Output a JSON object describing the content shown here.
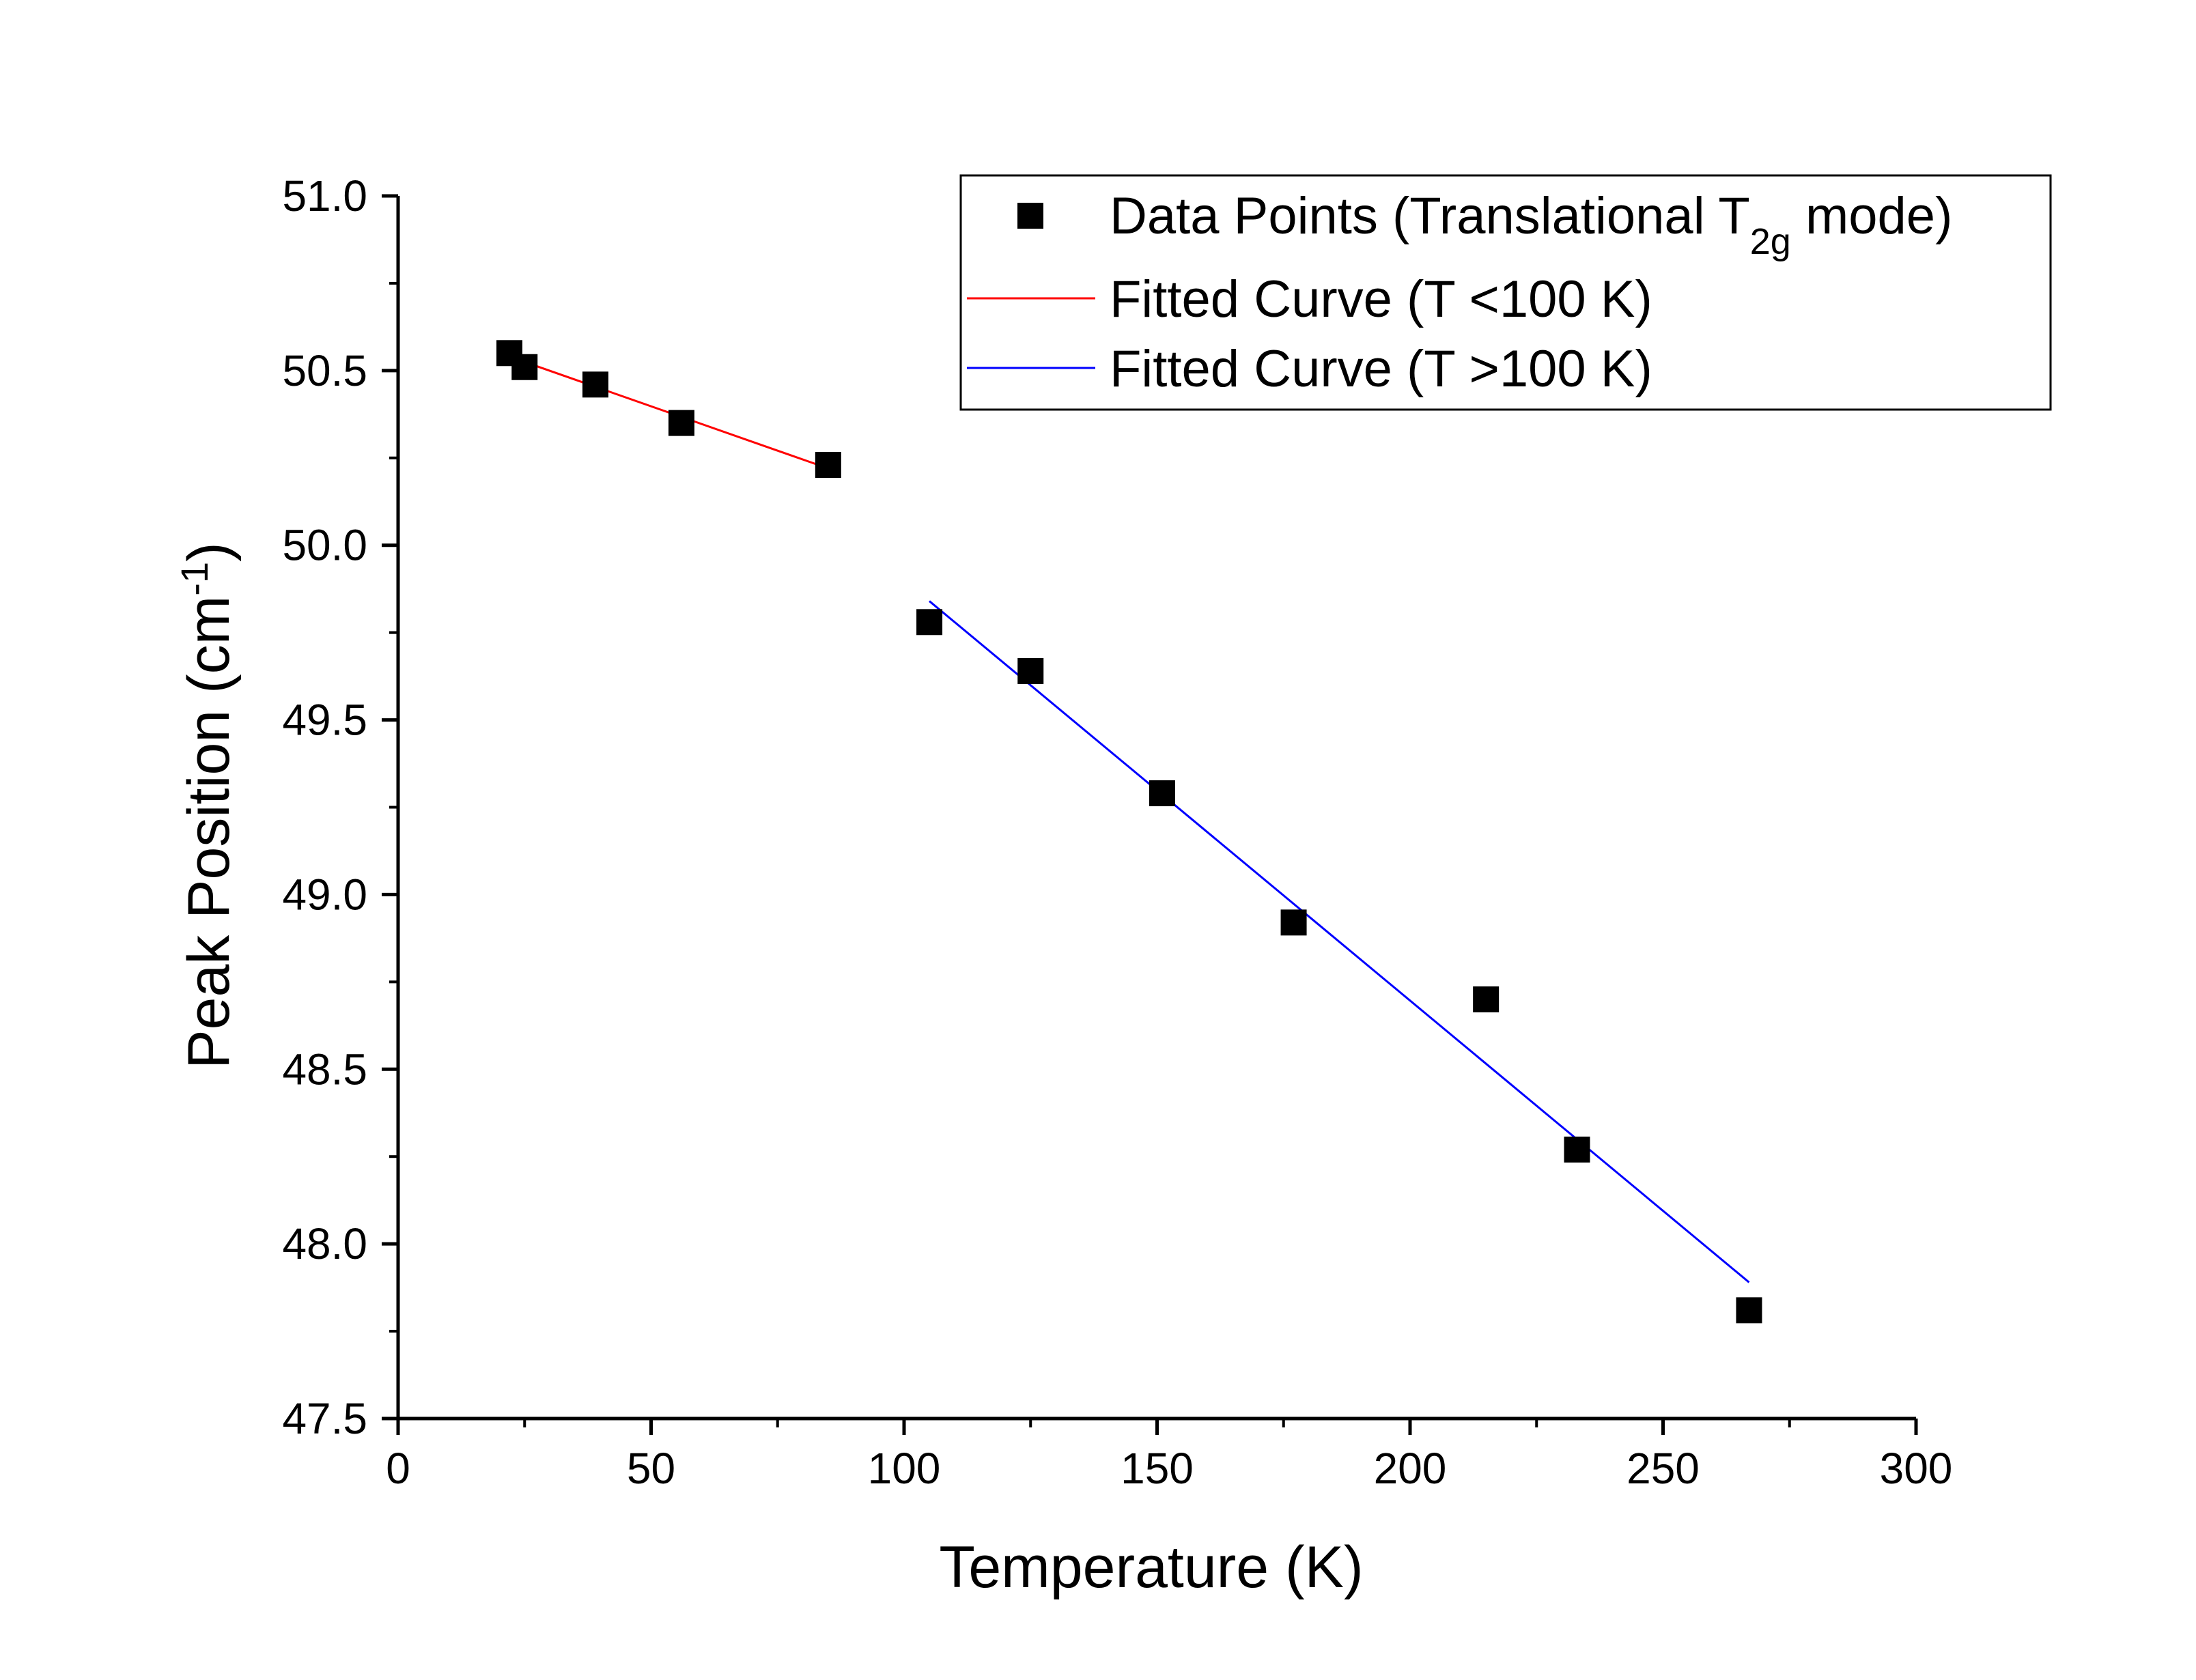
{
  "chart_data": {
    "type": "scatter",
    "xlabel": "Temperature (K)",
    "ylabel": {
      "main": "Peak Position (cm",
      "superscript": "-1",
      "suffix": ")"
    },
    "xlim": [
      0,
      300
    ],
    "ylim": [
      47.5,
      51.0
    ],
    "xticks": [
      0,
      50,
      100,
      150,
      200,
      250,
      300
    ],
    "xtick_labels": [
      "0",
      "50",
      "100",
      "150",
      "200",
      "250",
      "300"
    ],
    "yticks": [
      47.5,
      48.0,
      48.5,
      49.0,
      49.5,
      50.0,
      50.5,
      51.0
    ],
    "ytick_labels": [
      "47.5",
      "48.0",
      "48.5",
      "49.0",
      "49.5",
      "50.0",
      "50.5",
      "51.0"
    ],
    "grid": false,
    "legend_position": "top-right",
    "series": [
      {
        "name": "Data Points (Translational T2g mode)",
        "legend_label": {
          "prefix": "Data Points (Translational T",
          "subscript": "2g",
          "suffix": " mode)"
        },
        "kind": "scatter",
        "marker": "square",
        "color": "#000000",
        "x": [
          22,
          25,
          39,
          56,
          85,
          105,
          125,
          151,
          177,
          215,
          233,
          267
        ],
        "y": [
          50.55,
          50.51,
          50.46,
          50.35,
          50.23,
          49.78,
          49.64,
          49.29,
          48.92,
          48.7,
          48.27,
          47.81
        ]
      },
      {
        "name": "Fitted Curve (T <100 K)",
        "kind": "line",
        "color": "#ff0000",
        "x": [
          22,
          85
        ],
        "y": [
          50.54,
          50.22
        ]
      },
      {
        "name": "Fitted Curve (T >100 K)",
        "kind": "line",
        "color": "#0000ff",
        "x": [
          105,
          267
        ],
        "y": [
          49.84,
          47.89
        ]
      }
    ]
  }
}
